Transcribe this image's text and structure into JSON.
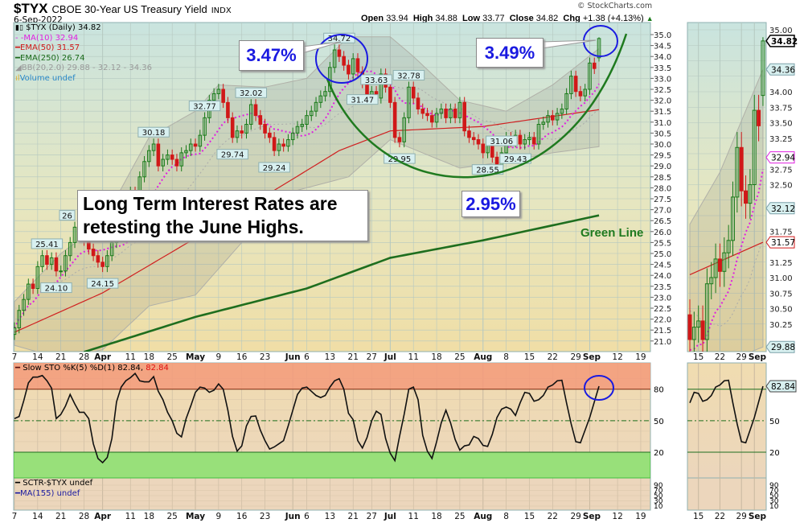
{
  "header": {
    "symbol": "$TYX",
    "name": "CBOE 30-Year US Treasury Yield",
    "exchange": "INDX",
    "date": "6-Sep-2022",
    "copyright": "© StockCharts.com",
    "open_label": "Open",
    "open": "33.94",
    "high_label": "High",
    "high": "34.88",
    "low_label": "Low",
    "low": "33.77",
    "close_label": "Close",
    "close": "34.82",
    "chg_label": "Chg",
    "chg": "+1.38 (+4.13%)",
    "chg_icon": "triangle-up-icon"
  },
  "legend": {
    "price": "$TYX (Daily) 34.82",
    "ma10": "MA(10) 32.94",
    "ema50": "EMA(50) 31.57",
    "ema250": "EMA(250) 26.74",
    "bb": "BB(20,2.0) 29.88 - 32.12 - 34.36",
    "volume": "Volume undef",
    "sto": "Slow STO %K(5) %D(1) 82.84,",
    "sto_d": "82.84",
    "sctr": "SCTR-$TYX undef",
    "sctr_ma": "MA(155) undef"
  },
  "annotations": {
    "callout_june": "3.47%",
    "callout_now": "3.49%",
    "callout_low": "2.95%",
    "headline_line1": "Long Term Interest Rates are",
    "headline_line2": "retesting the June Highs.",
    "green_line": "Green Line"
  },
  "colors": {
    "up": "#1a7a1a",
    "down": "#d01818",
    "ma10": "#e020e0",
    "ema50": "#d02020",
    "ema250": "#1e6e1e",
    "annotation": "#1a1ae0",
    "overbought": "#f39a7a",
    "oversold": "#98e07a"
  },
  "chart_data": [
    {
      "type": "candlestick",
      "title": "$TYX (Daily)",
      "start_date": "2022-03-07",
      "end_date": "2022-09-06",
      "closes": [
        21.6,
        22.4,
        22.9,
        23.6,
        23.4,
        24.4,
        24.9,
        24.5,
        24.8,
        24.2,
        24.2,
        24.9,
        25.5,
        26.2,
        26.0,
        25.6,
        25.2,
        24.9,
        24.6,
        24.4,
        24.9,
        25.5,
        26.0,
        26.4,
        27.0,
        27.8,
        27.3,
        28.5,
        29.2,
        29.7,
        30.0,
        29.0,
        29.3,
        29.5,
        29.3,
        29.0,
        29.6,
        29.7,
        30.0,
        29.9,
        30.4,
        31.2,
        32.0,
        32.3,
        32.5,
        31.9,
        31.2,
        30.3,
        30.6,
        30.5,
        30.9,
        31.8,
        31.3,
        30.9,
        30.5,
        30.3,
        29.7,
        30.0,
        29.9,
        30.2,
        30.5,
        30.8,
        30.9,
        31.3,
        31.5,
        31.9,
        32.2,
        32.4,
        33.5,
        34.3,
        34.0,
        33.6,
        33.2,
        33.9,
        33.3,
        32.8,
        32.2,
        32.4,
        32.1,
        33.2,
        32.6,
        31.9,
        30.3,
        30.1,
        31.2,
        32.6,
        32.1,
        31.6,
        31.4,
        31.3,
        31.0,
        31.4,
        31.6,
        31.2,
        31.6,
        31.2,
        31.9,
        30.6,
        30.3,
        30.2,
        30.0,
        29.6,
        30.0,
        29.4,
        28.9,
        29.6,
        30.3,
        30.1,
        30.4,
        30.0,
        30.2,
        30.3,
        30.0,
        30.9,
        31.0,
        31.3,
        31.1,
        31.4,
        31.6,
        32.3,
        33.1,
        32.4,
        32.2,
        32.5,
        33.7,
        33.45,
        34.82
      ],
      "last": {
        "open": 33.94,
        "high": 34.88,
        "low": 33.77,
        "close": 34.82
      },
      "ema50": [
        [
          "2022-03-07",
          21.4
        ],
        [
          "2022-04-01",
          23.2
        ],
        [
          "2022-05-02",
          25.7
        ],
        [
          "2022-06-01",
          28.4
        ],
        [
          "2022-06-15",
          29.7
        ],
        [
          "2022-07-01",
          30.6
        ],
        [
          "2022-08-01",
          30.8
        ],
        [
          "2022-09-06",
          31.57
        ]
      ],
      "ema250": [
        [
          "2022-03-28",
          20.5
        ],
        [
          "2022-05-02",
          22.1
        ],
        [
          "2022-06-06",
          23.4
        ],
        [
          "2022-07-01",
          24.8
        ],
        [
          "2022-08-01",
          25.6
        ],
        [
          "2022-09-06",
          26.74
        ]
      ],
      "bb_upper": [
        [
          "2022-03-07",
          22.8
        ],
        [
          "2022-03-21",
          25.0
        ],
        [
          "2022-04-01",
          26.4
        ],
        [
          "2022-04-18",
          30.3
        ],
        [
          "2022-05-02",
          31.5
        ],
        [
          "2022-05-09",
          32.7
        ],
        [
          "2022-05-23",
          32.6
        ],
        [
          "2022-06-06",
          33.0
        ],
        [
          "2022-06-17",
          34.9
        ],
        [
          "2022-07-01",
          34.9
        ],
        [
          "2022-07-11",
          34.0
        ],
        [
          "2022-07-25",
          32.0
        ],
        [
          "2022-08-08",
          31.5
        ],
        [
          "2022-08-22",
          32.7
        ],
        [
          "2022-09-06",
          34.36
        ]
      ],
      "bb_lower": [
        [
          "2022-03-07",
          20.8
        ],
        [
          "2022-03-21",
          20.2
        ],
        [
          "2022-04-01",
          20.6
        ],
        [
          "2022-04-18",
          22.6
        ],
        [
          "2022-05-02",
          23.1
        ],
        [
          "2022-05-16",
          25.5
        ],
        [
          "2022-05-23",
          27.5
        ],
        [
          "2022-06-17",
          28.5
        ],
        [
          "2022-07-01",
          30.2
        ],
        [
          "2022-07-25",
          28.9
        ],
        [
          "2022-08-08",
          29.2
        ],
        [
          "2022-08-22",
          29.6
        ],
        [
          "2022-09-06",
          29.88
        ]
      ],
      "bb_middle_last": 32.12,
      "ma10_last": 32.94,
      "price_labels": [
        {
          "text": "25.41",
          "date": "2022-03-16",
          "pos": "above"
        },
        {
          "text": "24.10",
          "date": "2022-03-18",
          "pos": "below"
        },
        {
          "text": "26",
          "date": "2022-03-24",
          "pos": "above"
        },
        {
          "text": "24.15",
          "date": "2022-04-01",
          "pos": "below"
        },
        {
          "text": "30.18",
          "date": "2022-04-19",
          "pos": "above"
        },
        {
          "text": "32.77",
          "date": "2022-05-04",
          "pos": "above"
        },
        {
          "text": "29.74",
          "date": "2022-05-12",
          "pos": "below"
        },
        {
          "text": "32.02",
          "date": "2022-05-18",
          "pos": "above"
        },
        {
          "text": "29.24",
          "date": "2022-05-25",
          "pos": "below"
        },
        {
          "text": "34.72",
          "date": "2022-06-15",
          "pos": "above"
        },
        {
          "text": "31.47",
          "date": "2022-06-23",
          "pos": "below"
        },
        {
          "text": "33.63",
          "date": "2022-06-28",
          "pos": "above"
        },
        {
          "text": "29.95",
          "date": "2022-07-06",
          "pos": "below"
        },
        {
          "text": "32.78",
          "date": "2022-07-08",
          "pos": "above"
        },
        {
          "text": "28.55",
          "date": "2022-08-02",
          "pos": "below"
        },
        {
          "text": "31.06",
          "date": "2022-08-05",
          "pos": "above"
        },
        {
          "text": "29.43",
          "date": "2022-08-10",
          "pos": "below"
        }
      ],
      "ylim": [
        21.0,
        35.0
      ],
      "yticks_step": 0.5,
      "grid": true
    },
    {
      "type": "line",
      "title": "Slow STO %K(5) %D(1)",
      "values": [
        52,
        54,
        69,
        86,
        91.5,
        91.5,
        93,
        88,
        81,
        52,
        56,
        64,
        75,
        66,
        58,
        58,
        52,
        28,
        14,
        10,
        15,
        33,
        68,
        82,
        88,
        91,
        95,
        88,
        87,
        87,
        92,
        78,
        70,
        58,
        50,
        38,
        34.6,
        52,
        64,
        77,
        82,
        81,
        77,
        79,
        85,
        80,
        60,
        35,
        21,
        26,
        45,
        54,
        54.5,
        41,
        31,
        23,
        25,
        28,
        31,
        45,
        60,
        75,
        81,
        82,
        78,
        74,
        72,
        74,
        82,
        88,
        90,
        80,
        57,
        51,
        31,
        24,
        34,
        50,
        59,
        56,
        33,
        19,
        12,
        35,
        56,
        80,
        82,
        70,
        36,
        21,
        14,
        30,
        48,
        60,
        48,
        32,
        22,
        26,
        27,
        35,
        33,
        26.5,
        25.5,
        37,
        53,
        61,
        63,
        61,
        55,
        67,
        77,
        76,
        68.5,
        70,
        74,
        82,
        84,
        88,
        88.5,
        67,
        47,
        30,
        29,
        41,
        53,
        68,
        82.84
      ],
      "levels": [
        80,
        50,
        20
      ],
      "ylim": [
        0,
        100
      ],
      "last": 82.84
    }
  ],
  "x_ticks": [
    {
      "label": "7",
      "date": "2022-03-07"
    },
    {
      "label": "14",
      "date": "2022-03-14"
    },
    {
      "label": "21",
      "date": "2022-03-21"
    },
    {
      "label": "28",
      "date": "2022-03-28"
    },
    {
      "label": "Apr",
      "date": "2022-04-01",
      "bold": true
    },
    {
      "label": "11",
      "date": "2022-04-11"
    },
    {
      "label": "18",
      "date": "2022-04-18"
    },
    {
      "label": "25",
      "date": "2022-04-25"
    },
    {
      "label": "May",
      "date": "2022-05-02",
      "bold": true
    },
    {
      "label": "9",
      "date": "2022-05-09"
    },
    {
      "label": "16",
      "date": "2022-05-16"
    },
    {
      "label": "23",
      "date": "2022-05-23"
    },
    {
      "label": "Jun",
      "date": "2022-06-01",
      "bold": true
    },
    {
      "label": "6",
      "date": "2022-06-06"
    },
    {
      "label": "13",
      "date": "2022-06-13"
    },
    {
      "label": "21",
      "date": "2022-06-21"
    },
    {
      "label": "27",
      "date": "2022-06-27"
    },
    {
      "label": "Jul",
      "date": "2022-07-01",
      "bold": true
    },
    {
      "label": "11",
      "date": "2022-07-11"
    },
    {
      "label": "18",
      "date": "2022-07-18"
    },
    {
      "label": "25",
      "date": "2022-07-25"
    },
    {
      "label": "Aug",
      "date": "2022-08-01",
      "bold": true
    },
    {
      "label": "8",
      "date": "2022-08-08"
    },
    {
      "label": "15",
      "date": "2022-08-15"
    },
    {
      "label": "22",
      "date": "2022-08-22"
    },
    {
      "label": "29",
      "date": "2022-08-29"
    },
    {
      "label": "Sep",
      "date": "2022-09-01",
      "bold": true
    },
    {
      "label": "12",
      "date": "2022-09-12"
    },
    {
      "label": "19",
      "date": "2022-09-19"
    }
  ],
  "mini": {
    "x_ticks": [
      {
        "label": "15",
        "date": "2022-08-15"
      },
      {
        "label": "22",
        "date": "2022-08-22"
      },
      {
        "label": "29",
        "date": "2022-08-29"
      },
      {
        "label": "Sep",
        "date": "2022-09-01",
        "bold": true
      }
    ],
    "ylim": [
      29.88,
      35.0
    ],
    "yticks_step": 0.25,
    "tags": [
      {
        "text": "34.82",
        "series": "price"
      },
      {
        "text": "34.36",
        "series": "bb"
      },
      {
        "text": "32.94",
        "series": "ma10"
      },
      {
        "text": "32.12",
        "series": "bb"
      },
      {
        "text": "31.57",
        "series": "ema50"
      },
      {
        "text": "29.88",
        "series": "bb"
      }
    ],
    "sto_tag": "82.84"
  },
  "sctr_ticks": [
    "90",
    "70",
    "50",
    "30",
    "10"
  ]
}
